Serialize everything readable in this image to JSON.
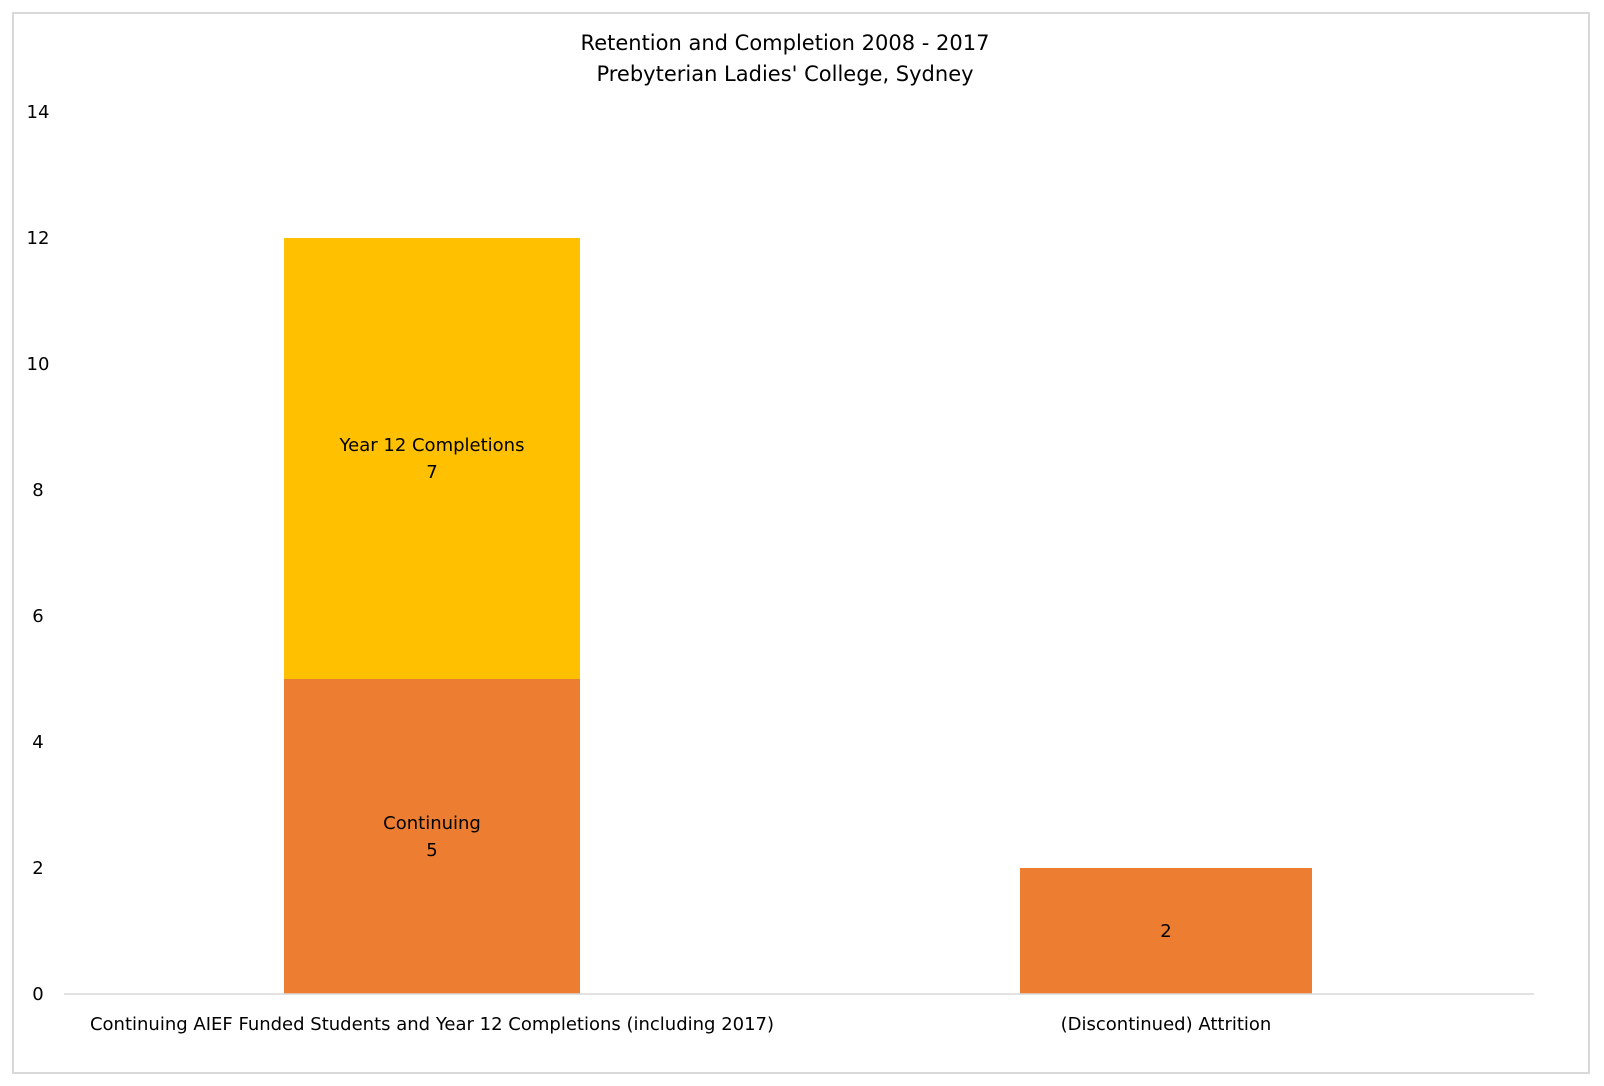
{
  "chart_data": {
    "type": "bar",
    "stacked": true,
    "title": "Retention and Completion 2008 - 2017",
    "subtitle": "Prebyterian Ladies' College, Sydney",
    "xlabel": "",
    "ylabel": "",
    "ylim": [
      0,
      14
    ],
    "yticks": [
      0,
      2,
      4,
      6,
      8,
      10,
      12,
      14
    ],
    "grid": false,
    "legend": "none",
    "categories": [
      "Continuing AIEF Funded Students and Year 12 Completions (including 2017)",
      "(Discontinued) Attrition"
    ],
    "series": [
      {
        "name": "Continuing",
        "color": "#ed7d31",
        "values": [
          5,
          2
        ],
        "labels": [
          "Continuing\n5",
          "2"
        ]
      },
      {
        "name": "Year 12 Completions",
        "color": "#ffc000",
        "values": [
          7,
          0
        ],
        "labels": [
          "Year 12 Completions\n7",
          ""
        ]
      }
    ]
  }
}
